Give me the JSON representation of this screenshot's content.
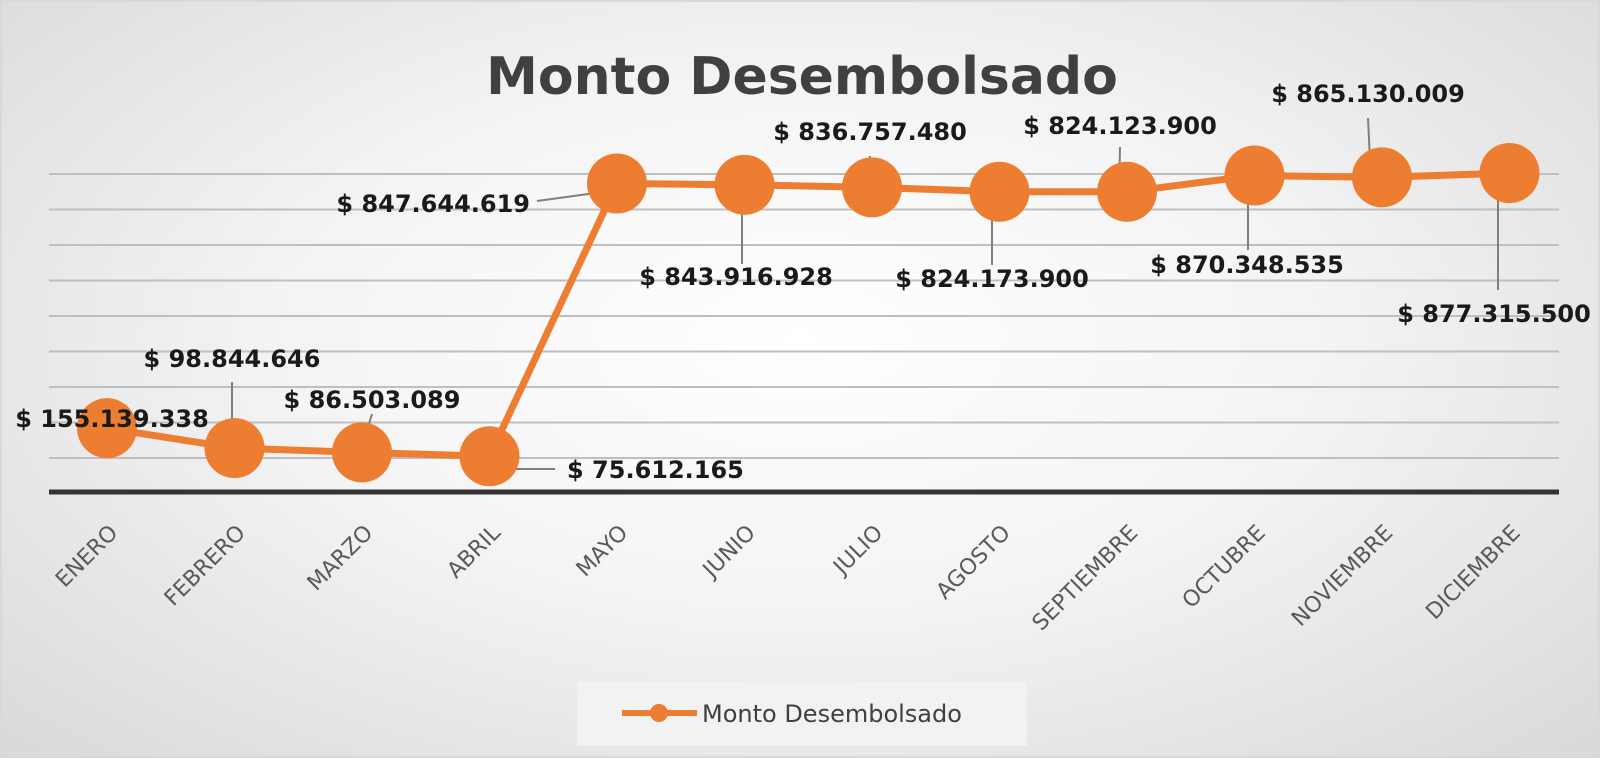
{
  "chart_data": {
    "type": "line",
    "title": "Monto Desembolsado",
    "categories": [
      "ENERO",
      "FEBRERO",
      "MARZO",
      "ABRIL",
      "MAYO",
      "JUNIO",
      "JULIO",
      "AGOSTO",
      "SEPTIEMBRE",
      "OCTUBRE",
      "NOVIEMBRE",
      "DICIEMBRE"
    ],
    "series": [
      {
        "name": "Monto Desembolsado",
        "values": [
          155139338,
          98844646,
          86503089,
          75612165,
          847644619,
          843916928,
          836757480,
          824173900,
          824123900,
          870348535,
          865130009,
          877315500
        ],
        "labels": [
          "$ 155.139.338",
          "$ 98.844.646",
          "$ 86.503.089",
          "$ 75.612.165",
          "$ 847.644.619",
          "$ 843.916.928",
          "$ 836.757.480",
          "$ 824.173.900",
          "$ 824.123.900",
          "$ 870.348.535",
          "$ 865.130.009",
          "$ 877.315.500"
        ],
        "color": "#ED7D31"
      }
    ],
    "ylim": [
      0,
      900000000
    ],
    "grid": true,
    "legend": "bottom-center"
  }
}
